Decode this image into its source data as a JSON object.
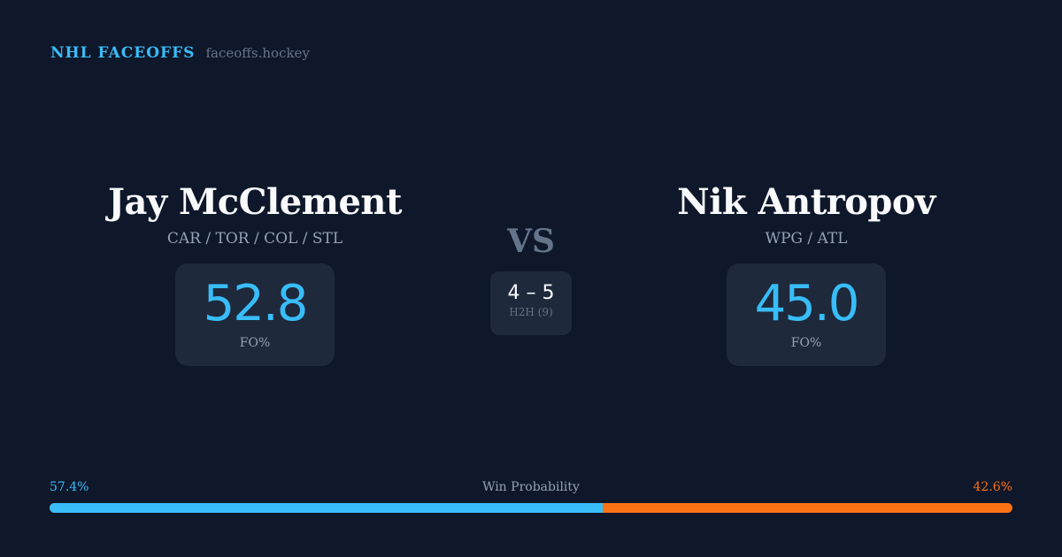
{
  "brand": {
    "title": "NHL FACEOFFS",
    "url": "faceoffs.hockey"
  },
  "player1": {
    "name": "Jay McClement",
    "teams": "CAR / TOR / COL / STL",
    "fo_pct": "52.8",
    "fo_label": "FO%"
  },
  "player2": {
    "name": "Nik Antropov",
    "teams": "WPG / ATL",
    "fo_pct": "45.0",
    "fo_label": "FO%"
  },
  "vs": "VS",
  "h2h": {
    "score": "4 – 5",
    "label": "H2H (9)"
  },
  "win_probability": {
    "label": "Win Probability",
    "p1": "57.4%",
    "p2": "42.6%",
    "p1_value": 57.4,
    "p2_value": 42.6
  },
  "colors": {
    "background": "#0f172a",
    "card": "#1e293b",
    "player1": "#38bdf8",
    "player2": "#f97316"
  }
}
